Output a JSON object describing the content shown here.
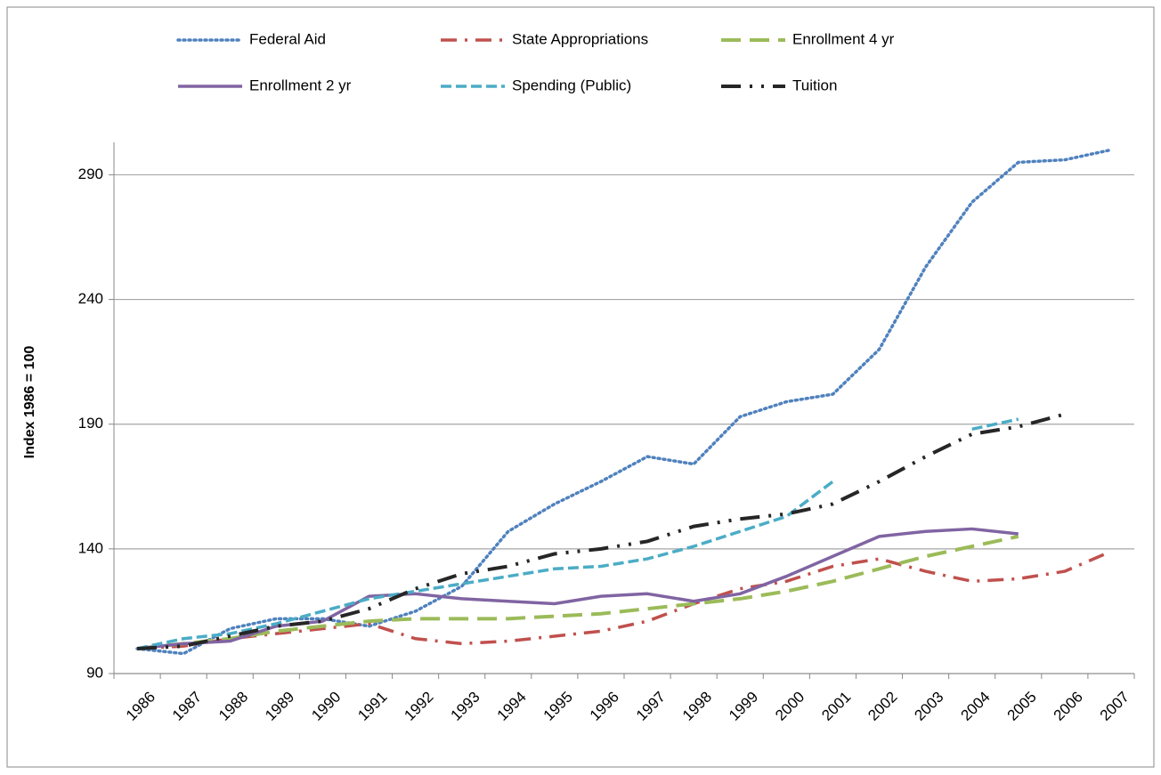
{
  "chart_data": {
    "type": "line",
    "y_axis_label": "Index 1986 = 100",
    "categories": [
      "1986",
      "1987",
      "1988",
      "1989",
      "1990",
      "1991",
      "1992",
      "1993",
      "1994",
      "1995",
      "1996",
      "1997",
      "1998",
      "1999",
      "2000",
      "2001",
      "2002",
      "2003",
      "2004",
      "2005",
      "2006",
      "2007"
    ],
    "series": [
      {
        "name": "Federal Aid",
        "color": "#4f81bd",
        "values": [
          100,
          98,
          108,
          112,
          112,
          109,
          115,
          125,
          147,
          158,
          167,
          177,
          174,
          193,
          199,
          202,
          220,
          253,
          279,
          295,
          296,
          300
        ]
      },
      {
        "name": "State Appropriations",
        "color": "#c0504d",
        "values": [
          100,
          101,
          104,
          106,
          108,
          110,
          104,
          102,
          103,
          105,
          107,
          111,
          118,
          124,
          127,
          133,
          136,
          131,
          127,
          128,
          131,
          139
        ]
      },
      {
        "name": "Enrollment 4 yr",
        "color": "#9bbb59",
        "values": [
          100,
          102,
          104,
          107,
          109,
          111,
          112,
          112,
          112,
          113,
          114,
          116,
          118,
          120,
          123,
          127,
          132,
          137,
          141,
          145,
          null,
          null
        ]
      },
      {
        "name": "Enrollment 2 yr",
        "color": "#8064a2",
        "values": [
          100,
          102,
          103,
          109,
          111,
          121,
          122,
          120,
          119,
          118,
          121,
          122,
          119,
          122,
          129,
          137,
          145,
          147,
          148,
          146,
          null,
          null
        ]
      },
      {
        "name": "Spending (Public)",
        "color": "#4bacc6",
        "values": [
          100,
          104,
          106,
          110,
          115,
          120,
          123,
          126,
          129,
          132,
          133,
          136,
          141,
          147,
          153,
          167,
          null,
          null,
          188,
          192,
          null,
          null
        ]
      },
      {
        "name": "Tuition",
        "color": "#262626",
        "values": [
          100,
          101,
          105,
          109,
          111,
          116,
          124,
          130,
          133,
          138,
          140,
          143,
          149,
          152,
          154,
          158,
          167,
          177,
          186,
          189,
          194,
          null
        ]
      }
    ],
    "ylim": [
      90,
      303
    ],
    "yticks": [
      90,
      140,
      190,
      240,
      290
    ],
    "grid": true
  }
}
